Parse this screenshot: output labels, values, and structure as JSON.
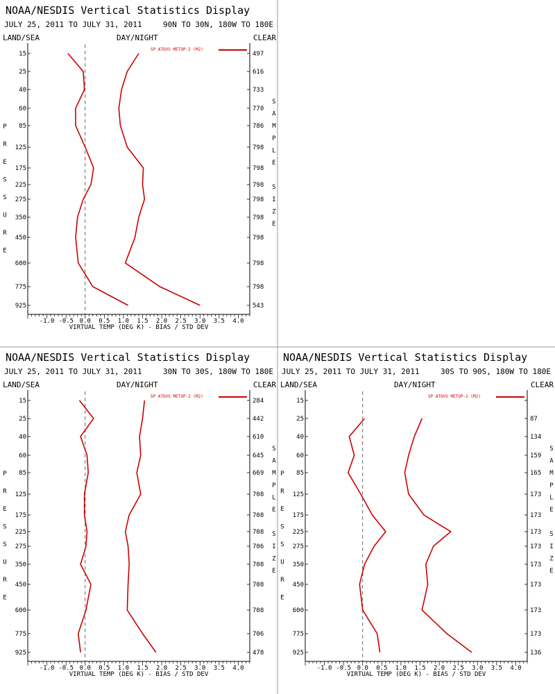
{
  "page": {
    "title": "NOAA/NESDIS Vertical Statistics Display",
    "date_range": "JULY 25, 2011 TO JULY 31, 2011",
    "label_land_sea": "LAND/SEA",
    "label_day_night": "DAY/NIGHT",
    "label_clear": "CLEAR",
    "xlabel": "VIRTUAL TEMP (DEG K) - BIAS / STD DEV",
    "legend": "SP ATOVS METOP-2 (M2)",
    "pressure_label": "PRESSURE",
    "sample_size_label": "SAMPLE SIZE",
    "series_color": "#cc0000",
    "divider_color": "#999999"
  },
  "chart_data": [
    {
      "type": "line",
      "region": "90N TO 30N, 180W TO 180E",
      "pressure_levels": [
        "15",
        "25",
        "40",
        "60",
        "85",
        "125",
        "175",
        "225",
        "275",
        "350",
        "450",
        "600",
        "775",
        "925"
      ],
      "sample_size": [
        "497",
        "616",
        "733",
        "770",
        "786",
        "798",
        "798",
        "798",
        "798",
        "798",
        "798",
        "798",
        "798",
        "543"
      ],
      "xticks": [
        "-1.0",
        "-0.5",
        "0.0",
        "0.5",
        "1.0",
        "1.5",
        "2.0",
        "2.5",
        "3.0",
        "3.5",
        "4.0"
      ],
      "xlim": [
        -1.5,
        4.3
      ],
      "series": [
        {
          "values": [
            -0.45,
            -0.05,
            -0.02,
            -0.25,
            -0.25,
            0.0,
            0.22,
            0.15,
            -0.05,
            -0.2,
            -0.25,
            -0.18,
            0.2,
            1.12
          ]
        },
        {
          "values": [
            1.4,
            1.1,
            0.95,
            0.88,
            0.92,
            1.1,
            1.52,
            1.5,
            1.55,
            1.4,
            1.3,
            1.05,
            1.95,
            3.0
          ]
        }
      ]
    },
    {
      "type": "line",
      "region": "30N TO 30S, 180W TO 180E",
      "pressure_levels": [
        "15",
        "25",
        "40",
        "60",
        "85",
        "125",
        "175",
        "225",
        "275",
        "350",
        "450",
        "600",
        "775",
        "925"
      ],
      "sample_size": [
        "284",
        "442",
        "610",
        "645",
        "669",
        "708",
        "708",
        "708",
        "706",
        "708",
        "708",
        "708",
        "706",
        "478"
      ],
      "xticks": [
        "-1.0",
        "-0.5",
        "0.0",
        "0.5",
        "1.0",
        "1.5",
        "2.0",
        "2.5",
        "3.0",
        "3.5",
        "4.0"
      ],
      "xlim": [
        -1.5,
        4.3
      ],
      "series": [
        {
          "values": [
            -0.15,
            0.22,
            -0.12,
            0.05,
            0.08,
            -0.02,
            -0.02,
            0.05,
            0.02,
            -0.12,
            0.15,
            0.02,
            -0.18,
            -0.12
          ]
        },
        {
          "values": [
            1.55,
            1.5,
            1.42,
            1.45,
            1.35,
            1.45,
            1.15,
            1.05,
            1.12,
            1.15,
            1.12,
            1.1,
            1.5,
            1.85
          ]
        }
      ]
    },
    {
      "type": "line",
      "region": "30S TO 90S, 180W TO 180E",
      "pressure_levels": [
        "15",
        "25",
        "40",
        "60",
        "85",
        "125",
        "175",
        "225",
        "275",
        "350",
        "450",
        "600",
        "775",
        "925"
      ],
      "sample_size": [
        "",
        "87",
        "134",
        "159",
        "165",
        "173",
        "173",
        "173",
        "173",
        "173",
        "173",
        "173",
        "173",
        "136"
      ],
      "xticks": [
        "-1.0",
        "-0.5",
        "0.0",
        "0.5",
        "1.0",
        "1.5",
        "2.0",
        "2.5",
        "3.0",
        "3.5",
        "4.0"
      ],
      "xlim": [
        -1.5,
        4.3
      ],
      "series": [
        {
          "values": [
            null,
            0.05,
            -0.35,
            -0.22,
            -0.38,
            -0.05,
            0.25,
            0.6,
            0.3,
            0.05,
            -0.08,
            0.0,
            0.38,
            0.45
          ]
        },
        {
          "values": [
            null,
            1.55,
            1.35,
            1.2,
            1.1,
            1.2,
            1.6,
            2.3,
            1.85,
            1.65,
            1.7,
            1.55,
            2.2,
            2.85
          ]
        }
      ]
    }
  ]
}
